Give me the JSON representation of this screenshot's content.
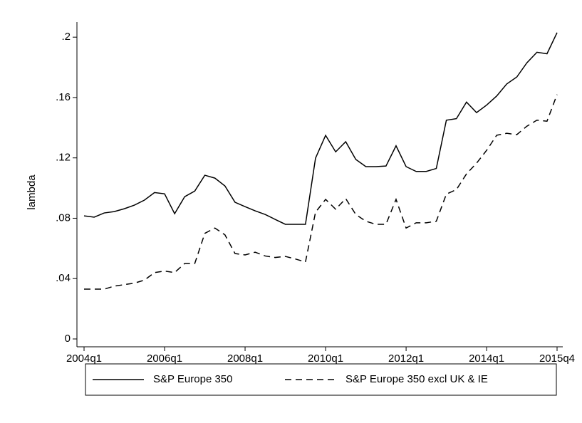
{
  "chart_data": {
    "type": "line",
    "y_label": "lambda",
    "categories": [
      "2004q1",
      null,
      null,
      null,
      null,
      null,
      null,
      null,
      "2006q1",
      null,
      null,
      null,
      null,
      null,
      null,
      null,
      "2008q1",
      null,
      null,
      null,
      null,
      null,
      null,
      null,
      "2010q1",
      null,
      null,
      null,
      null,
      null,
      null,
      null,
      "2012q1",
      null,
      null,
      null,
      null,
      null,
      null,
      null,
      "2014q1",
      null,
      null,
      null,
      null,
      null,
      null,
      "2015q4"
    ],
    "series": [
      {
        "name": "S&P Europe 350",
        "color": "#000000",
        "dash": "solid",
        "values": [
          0.0816,
          0.0807,
          0.0835,
          0.0844,
          0.0863,
          0.0887,
          0.092,
          0.097,
          0.0962,
          0.083,
          0.0943,
          0.098,
          0.1085,
          0.1066,
          0.1014,
          0.0906,
          0.0877,
          0.0849,
          0.0825,
          0.0792,
          0.076,
          0.076,
          0.076,
          0.1198,
          0.1349,
          0.124,
          0.1307,
          0.119,
          0.1142,
          0.1142,
          0.1146,
          0.128,
          0.1142,
          0.111,
          0.111,
          0.113,
          0.145,
          0.146,
          0.157,
          0.15,
          0.155,
          0.161,
          0.169,
          0.1736,
          0.183,
          0.19,
          0.189,
          0.203
        ]
      },
      {
        "name": "S&P Europe 350 excl UK & IE",
        "color": "#000000",
        "dash": "dashed",
        "values": [
          0.033,
          0.033,
          0.033,
          0.035,
          0.036,
          0.037,
          0.039,
          0.044,
          0.045,
          0.044,
          0.05,
          0.05,
          0.07,
          0.0735,
          0.069,
          0.0566,
          0.0557,
          0.0575,
          0.055,
          0.054,
          0.0547,
          0.053,
          0.051,
          0.084,
          0.0925,
          0.086,
          0.093,
          0.0825,
          0.078,
          0.076,
          0.076,
          0.0925,
          0.0735,
          0.077,
          0.077,
          0.078,
          0.096,
          0.099,
          0.1094,
          0.1165,
          0.125,
          0.135,
          0.1363,
          0.1354,
          0.141,
          0.145,
          0.1443,
          0.162
        ]
      }
    ],
    "ylim": [
      -0.0052,
      0.21
    ],
    "yticks": [
      0,
      {
        "value": 0.04,
        "label": ".04"
      },
      {
        "value": 0.08,
        "label": ".08"
      },
      {
        "value": 0.12,
        "label": ".12"
      },
      {
        "value": 0.16,
        "label": ".16"
      },
      {
        "value": 0.2,
        "label": ".2"
      }
    ],
    "grid": false,
    "legend": "bottom"
  }
}
